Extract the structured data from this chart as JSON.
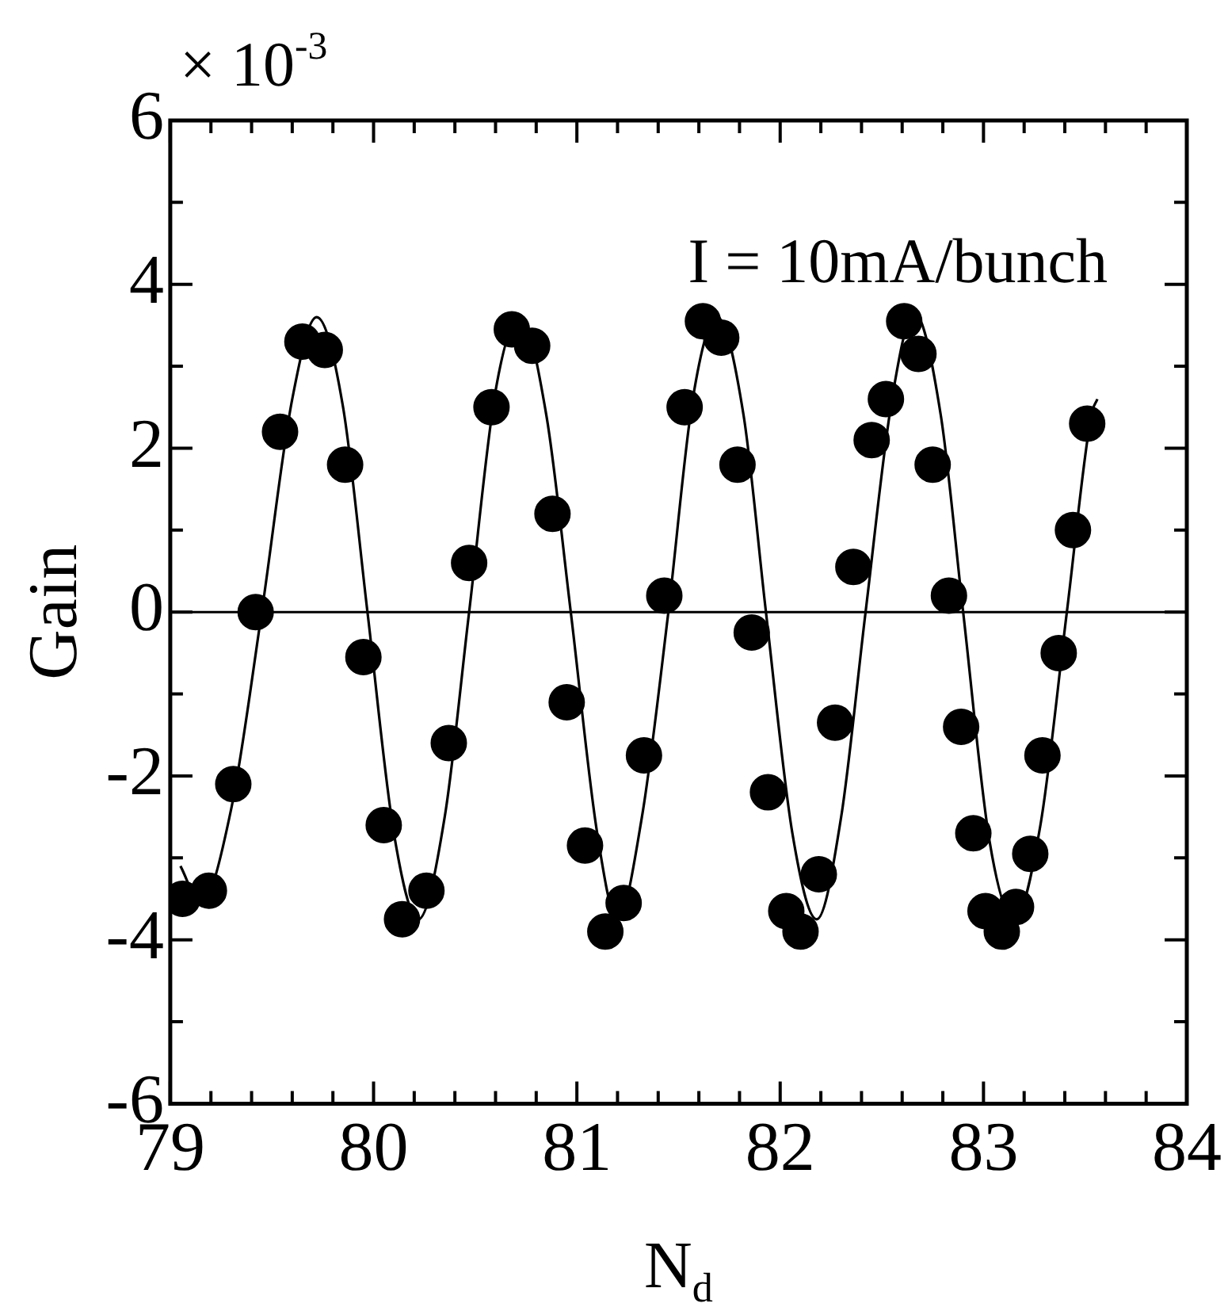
{
  "chart_data": {
    "type": "scatter",
    "xlabel": "N$_{d}$",
    "ylabel": "Gain",
    "annotations": [
      "× 10$^{-3}$",
      "I = 10mA/bunch"
    ],
    "xlim": [
      79,
      84
    ],
    "ylim": [
      -6,
      6
    ],
    "xticks": [
      79,
      {
        "value": 79.2,
        "label": null
      },
      {
        "value": 79.4,
        "label": null
      },
      {
        "value": 79.6,
        "label": null
      },
      {
        "value": 79.8,
        "label": null
      },
      80,
      {
        "value": 80.2,
        "label": null
      },
      {
        "value": 80.4,
        "label": null
      },
      {
        "value": 80.6,
        "label": null
      },
      {
        "value": 80.8,
        "label": null
      },
      81,
      {
        "value": 81.2,
        "label": null
      },
      {
        "value": 81.4,
        "label": null
      },
      {
        "value": 81.6,
        "label": null
      },
      {
        "value": 81.8,
        "label": null
      },
      82,
      {
        "value": 82.2,
        "label": null
      },
      {
        "value": 82.4,
        "label": null
      },
      {
        "value": 82.6,
        "label": null
      },
      {
        "value": 82.8,
        "label": null
      },
      83,
      {
        "value": 83.2,
        "label": null
      },
      {
        "value": 83.4,
        "label": null
      },
      {
        "value": 83.6,
        "label": null
      },
      {
        "value": 83.8,
        "label": null
      },
      84
    ],
    "yticks": [
      -6,
      {
        "value": -5,
        "label": null
      },
      -4,
      {
        "value": -3,
        "label": null
      },
      -2,
      {
        "value": -1,
        "label": null
      },
      0,
      {
        "value": 1,
        "label": null
      },
      2,
      {
        "value": 3,
        "label": null
      },
      4,
      {
        "value": 5,
        "label": null
      },
      6
    ],
    "grid": false,
    "legend": false,
    "marker": "circle",
    "ref_lines": [
      {
        "axis": "y",
        "value": 0,
        "color": "#000000"
      }
    ],
    "series": [
      {
        "color": "#000000",
        "x": [
          79.06,
          79.19,
          79.31,
          79.42,
          79.54,
          79.65,
          79.76,
          79.86,
          79.95,
          80.05,
          80.14,
          80.26,
          80.37,
          80.47,
          80.58,
          80.68,
          80.78,
          80.88,
          80.95,
          81.04,
          81.14,
          81.23,
          81.33,
          81.43,
          81.53,
          81.62,
          81.71,
          81.79,
          81.86,
          81.94,
          82.03,
          82.1,
          82.19,
          82.27,
          82.36,
          82.45,
          82.52,
          82.61,
          82.68,
          82.75,
          82.83,
          82.89,
          82.95,
          83.01,
          83.09,
          83.16,
          83.23,
          83.29,
          83.37,
          83.44,
          83.51
        ],
        "values": [
          -3.5,
          -3.4,
          -2.1,
          0.0,
          2.2,
          3.3,
          3.2,
          1.8,
          -0.55,
          -2.6,
          -3.75,
          -3.4,
          -1.6,
          0.6,
          2.5,
          3.45,
          3.25,
          1.2,
          -1.1,
          -2.85,
          -3.9,
          -3.55,
          -1.75,
          0.2,
          2.5,
          3.55,
          3.35,
          1.8,
          -0.25,
          -2.2,
          -3.65,
          -3.9,
          -3.2,
          -1.35,
          0.55,
          2.1,
          2.6,
          3.55,
          3.15,
          1.8,
          0.2,
          -1.4,
          -2.7,
          -3.65,
          -3.9,
          -3.6,
          -2.95,
          -1.75,
          -0.5,
          1.0,
          2.3
        ]
      },
      {
        "type": "line",
        "color": "#000000",
        "marker": "none",
        "line_style": "solid",
        "x": [
          79.05,
          79.15,
          79.3,
          79.45,
          79.6,
          79.72,
          79.85,
          79.97,
          80.1,
          80.22,
          80.35,
          80.47,
          80.6,
          80.72,
          80.85,
          80.97,
          81.1,
          81.2,
          81.32,
          81.45,
          81.57,
          81.69,
          81.82,
          81.93,
          82.06,
          82.18,
          82.3,
          82.42,
          82.55,
          82.66,
          82.79,
          82.9,
          83.03,
          83.15,
          83.28,
          83.41,
          83.53,
          83.56
        ],
        "values": [
          -3.1,
          -3.55,
          -2.4,
          0,
          2.6,
          3.6,
          2.5,
          0,
          -2.7,
          -3.75,
          -2.5,
          0,
          2.7,
          3.6,
          2.4,
          0,
          -2.7,
          -3.75,
          -2.5,
          0,
          2.6,
          3.6,
          2.4,
          0,
          -2.7,
          -3.75,
          -2.5,
          0,
          2.6,
          3.65,
          2.4,
          0,
          -2.8,
          -3.75,
          -2.6,
          0,
          2.4,
          2.6
        ]
      }
    ]
  }
}
